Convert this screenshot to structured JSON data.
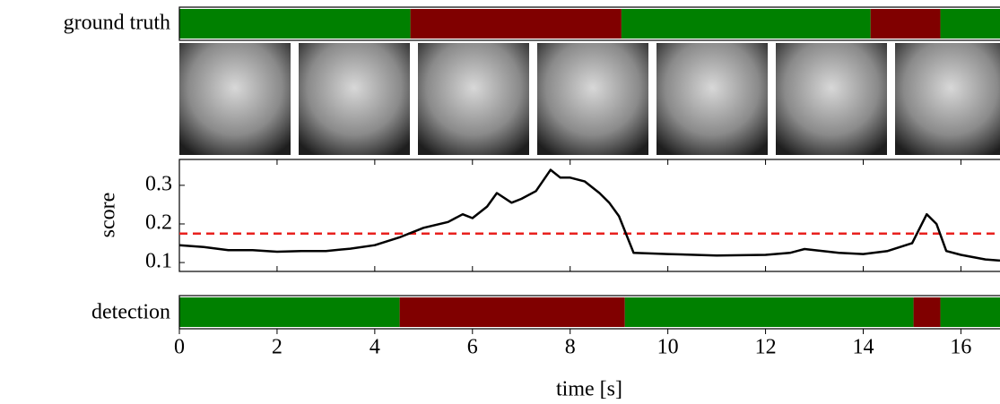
{
  "chart_data": {
    "type": "line",
    "xlabel": "time [s]",
    "ylabel": "score",
    "xlim": [
      0,
      16.8
    ],
    "xticks": [
      0,
      2,
      4,
      6,
      8,
      10,
      12,
      14,
      16
    ],
    "ylim": [
      0.077,
      0.367
    ],
    "yticks": [
      0.1,
      0.2,
      0.3
    ],
    "x": [
      0,
      0.5,
      1,
      1.5,
      2,
      2.5,
      3,
      3.5,
      4,
      4.5,
      5,
      5.5,
      5.8,
      6,
      6.3,
      6.5,
      6.8,
      7,
      7.3,
      7.6,
      7.8,
      8,
      8.3,
      8.6,
      8.8,
      9,
      9.3,
      10,
      11,
      12,
      12.5,
      12.8,
      13.5,
      14,
      14.5,
      15,
      15.3,
      15.5,
      15.7,
      16,
      16.5,
      16.8
    ],
    "series": [
      {
        "color": "#000000",
        "values": [
          0.145,
          0.14,
          0.132,
          0.132,
          0.128,
          0.13,
          0.13,
          0.136,
          0.145,
          0.165,
          0.19,
          0.205,
          0.225,
          0.215,
          0.245,
          0.28,
          0.255,
          0.265,
          0.285,
          0.34,
          0.32,
          0.32,
          0.31,
          0.28,
          0.255,
          0.22,
          0.125,
          0.122,
          0.118,
          0.12,
          0.125,
          0.135,
          0.125,
          0.122,
          0.13,
          0.15,
          0.225,
          0.2,
          0.13,
          0.12,
          0.108,
          0.105
        ]
      }
    ],
    "threshold": {
      "value": 0.175,
      "color": "#e8201e"
    },
    "ground_truth": {
      "label": "ground truth",
      "boundaries": [
        0,
        4.73,
        9.05,
        14.15,
        15.58,
        16.8
      ],
      "colors": [
        "#008000",
        "#800000",
        "#008000",
        "#800000",
        "#008000"
      ]
    },
    "detection": {
      "label": "detection",
      "boundaries": [
        0,
        4.51,
        9.12,
        15.03,
        15.58,
        16.8
      ],
      "colors": [
        "#008000",
        "#800000",
        "#008000",
        "#800000",
        "#008000"
      ]
    }
  }
}
